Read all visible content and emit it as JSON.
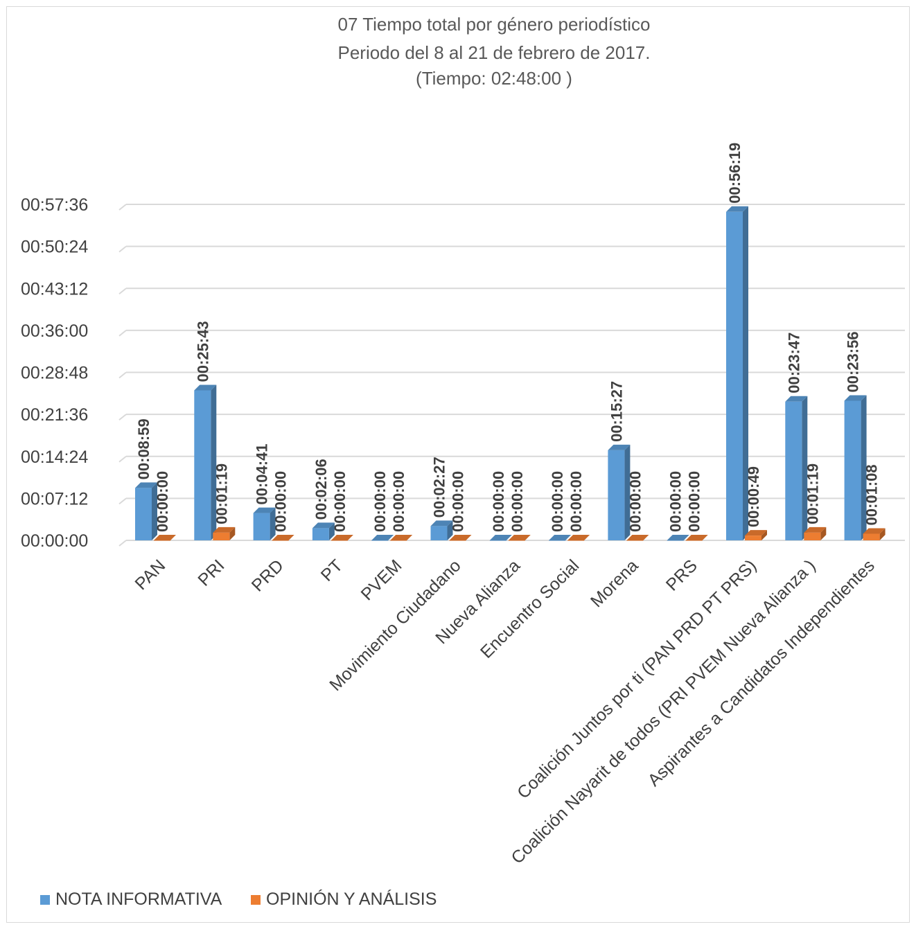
{
  "chart_data": {
    "type": "bar",
    "title": "07 Tiempo total por género periodístico",
    "subtitle": "Periodo del 8 al 21 de febrero de 2017.",
    "subtitle2": "(Tiempo: 02:48:00  )",
    "categories": [
      "PAN",
      "PRI",
      "PRD",
      "PT",
      "PVEM",
      "Movimiento Ciudadano",
      "Nueva Alianza",
      "Encuentro Social",
      "Morena",
      "PRS",
      "Coalición Juntos por ti (PAN PRD PT PRS)",
      "Coalición Nayarit de todos (PRI PVEM Nueva Alianza )",
      "Aspirantes a Candidatos Independientes"
    ],
    "series": [
      {
        "name": "NOTA INFORMATIVA",
        "color": "#5b9bd5",
        "values_seconds": [
          539,
          1543,
          281,
          126,
          0,
          147,
          0,
          0,
          927,
          0,
          3379,
          1427,
          1436
        ],
        "labels": [
          "00:08:59",
          "00:25:43",
          "00:04:41",
          "00:02:06",
          "00:00:00",
          "00:02:27",
          "00:00:00",
          "00:00:00",
          "00:15:27",
          "00:00:00",
          "00:56:19",
          "00:23:47",
          "00:23:56"
        ]
      },
      {
        "name": "OPINIÓN Y ANÁLISIS",
        "color": "#ed7d31",
        "values_seconds": [
          0,
          79,
          0,
          0,
          0,
          0,
          0,
          0,
          0,
          0,
          49,
          79,
          68
        ],
        "labels": [
          "00:00:00",
          "00:01:19",
          "00:00:00",
          "00:00:00",
          "00:00:00",
          "00:00:00",
          "00:00:00",
          "00:00:00",
          "00:00:00",
          "00:00:00",
          "00:00:49",
          "00:01:19",
          "00:01:08"
        ]
      }
    ],
    "ylim_seconds": [
      0,
      3456
    ],
    "ytick_step_seconds": 432,
    "ytick_labels": [
      "00:00:00",
      "00:07:12",
      "00:14:24",
      "00:21:36",
      "00:28:48",
      "00:36:00",
      "00:43:12",
      "00:50:24",
      "00:57:36"
    ],
    "grid": true,
    "legend_position": "bottom-left",
    "style": "3d-clustered-column"
  }
}
